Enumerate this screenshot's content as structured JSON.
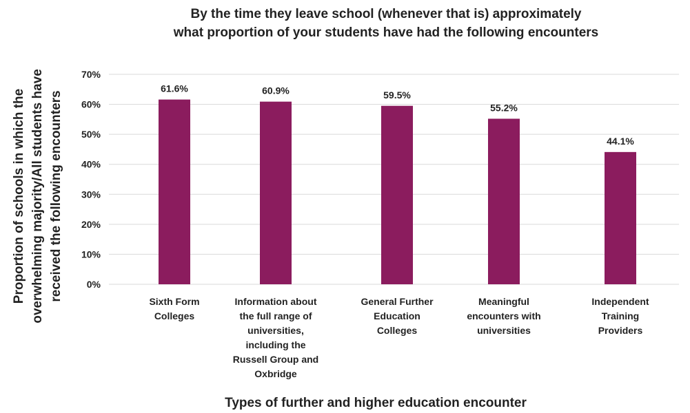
{
  "chart_data": {
    "type": "bar",
    "title_lines": [
      "By the time they leave school (whenever that is) approximately",
      "what proportion of your students have had the following encounters"
    ],
    "xlabel": "Types of further and higher education encounter",
    "ylabel_lines": [
      "Proportion of schools in which the",
      "overwhelming majority/All students have",
      "received the following encounters"
    ],
    "ylim": [
      0,
      70
    ],
    "y_ticks": [
      {
        "value": 0,
        "label": "0%"
      },
      {
        "value": 10,
        "label": "10%"
      },
      {
        "value": 20,
        "label": "20%"
      },
      {
        "value": 30,
        "label": "30%"
      },
      {
        "value": 40,
        "label": "40%"
      },
      {
        "value": 50,
        "label": "50%"
      },
      {
        "value": 60,
        "label": "60%"
      },
      {
        "value": 70,
        "label": "70%"
      }
    ],
    "grid": true,
    "bar_color": "#8b1c5e",
    "categories": [
      {
        "lines": [
          "Sixth Form",
          "Colleges"
        ]
      },
      {
        "lines": [
          "Information about",
          "the full range of",
          "universities,",
          "including the",
          "Russell Group and",
          "Oxbridge"
        ]
      },
      {
        "lines": [
          "General Further",
          "Education",
          "Colleges"
        ]
      },
      {
        "lines": [
          "Meaningful",
          "encounters with",
          "universities"
        ]
      },
      {
        "lines": [
          "Independent",
          "Training",
          "Providers"
        ]
      }
    ],
    "values": [
      61.6,
      60.9,
      59.5,
      55.2,
      44.1
    ],
    "data_labels": [
      "61.6%",
      "60.9%",
      "59.5%",
      "55.2%",
      "44.1%"
    ]
  }
}
